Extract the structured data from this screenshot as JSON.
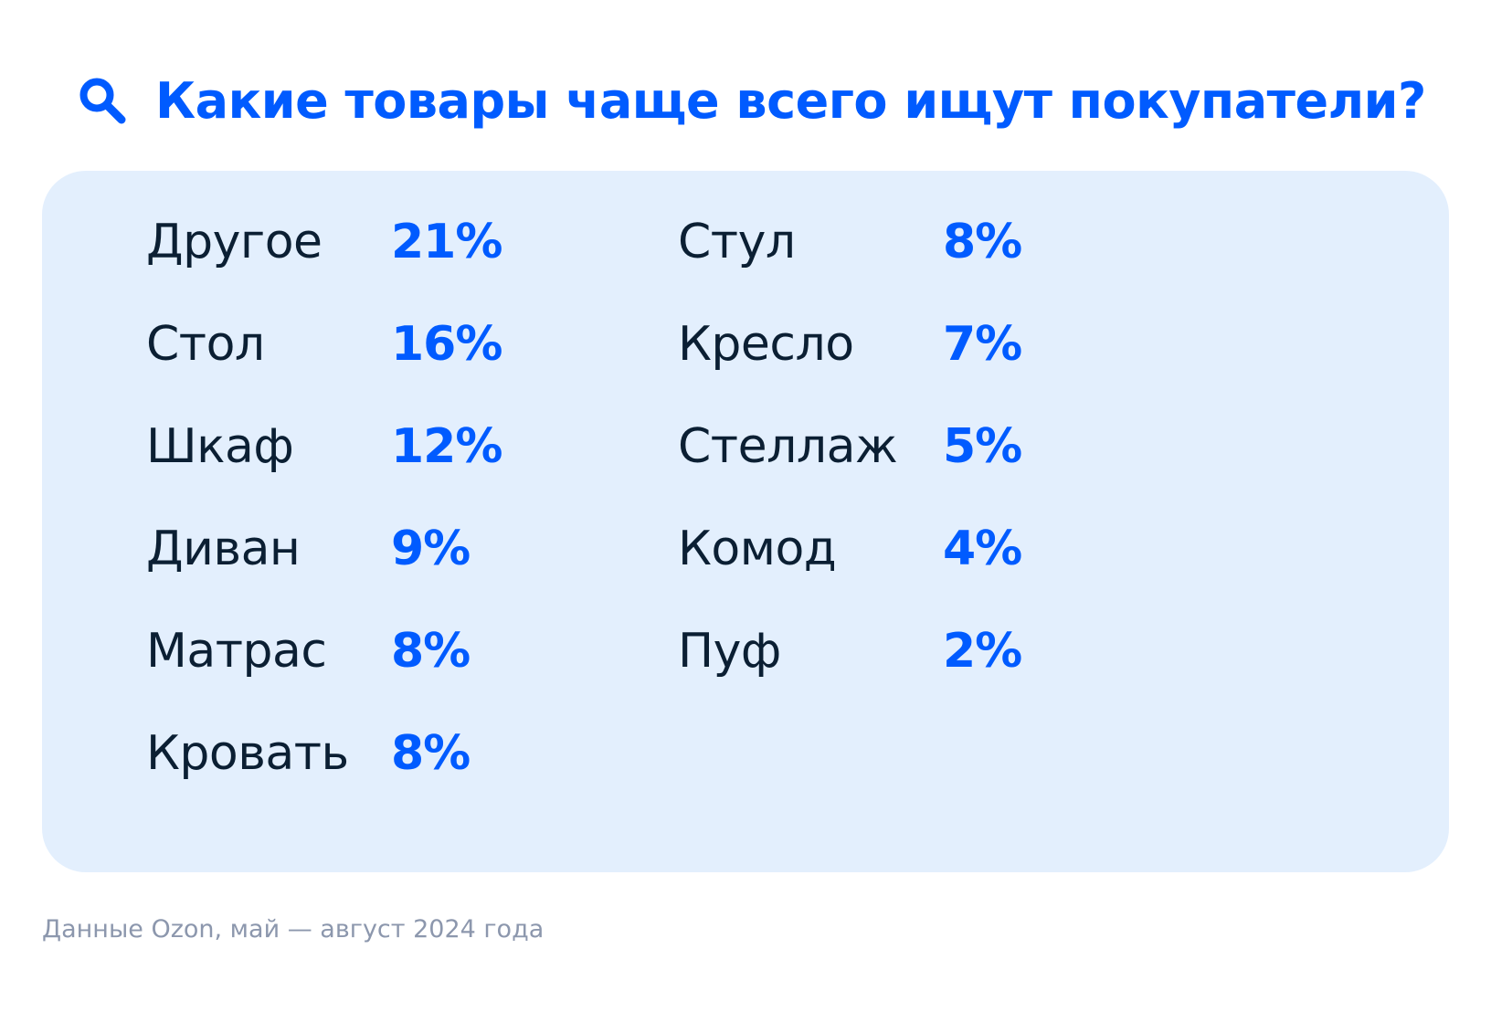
{
  "header": {
    "icon": "search-icon",
    "title": "Какие товары чаще всего ищут покупатели?"
  },
  "colors": {
    "accent": "#005bff",
    "card_background": "#e3effd",
    "label_text": "#0b1f33",
    "footnote_text": "#8c97ad"
  },
  "chart_data": {
    "type": "table",
    "title": "Какие товары чаще всего ищут покупатели?",
    "columns": [
      {
        "rows": [
          {
            "label": "Другое",
            "value": 21,
            "display": "21%"
          },
          {
            "label": "Стол",
            "value": 16,
            "display": "16%"
          },
          {
            "label": "Шкаф",
            "value": 12,
            "display": "12%"
          },
          {
            "label": "Диван",
            "value": 9,
            "display": "9%"
          },
          {
            "label": "Матрас",
            "value": 8,
            "display": "8%"
          },
          {
            "label": "Кровать",
            "value": 8,
            "display": "8%"
          }
        ]
      },
      {
        "rows": [
          {
            "label": "Стул",
            "value": 8,
            "display": "8%"
          },
          {
            "label": "Кресло",
            "value": 7,
            "display": "7%"
          },
          {
            "label": "Стеллаж",
            "value": 5,
            "display": "5%"
          },
          {
            "label": "Комод",
            "value": 4,
            "display": "4%"
          },
          {
            "label": "Пуф",
            "value": 2,
            "display": "2%"
          }
        ]
      }
    ],
    "unit": "%"
  },
  "footnote": "Данные Ozon, май — август 2024 года"
}
